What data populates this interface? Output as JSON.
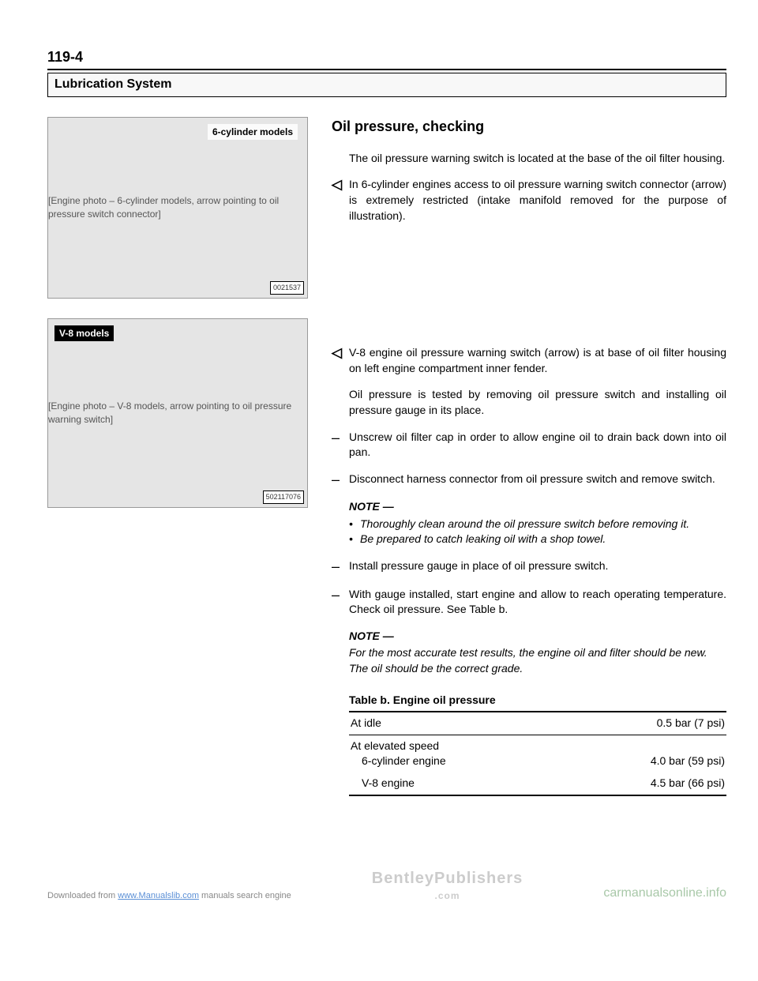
{
  "page_number": "119-4",
  "section_header": "Lubrication System",
  "image1": {
    "label": "6-cylinder models",
    "id": "0021537",
    "alt": "[Engine photo – 6-cylinder models, arrow pointing to oil pressure switch connector]"
  },
  "image2": {
    "label": "V-8 models",
    "id": "502117076",
    "alt": "[Engine photo – V-8 models, arrow pointing to oil pressure warning switch]"
  },
  "heading": "Oil pressure, checking",
  "p1": "The oil pressure warning switch is located at the base of the oil filter housing.",
  "p2": "In 6-cylinder engines access to oil pressure warning switch connector (arrow) is extremely restricted (intake manifold removed for the purpose of illustration).",
  "p3": "V-8 engine oil pressure warning switch (arrow) is at base of oil filter housing on left engine compartment inner fender.",
  "p4": "Oil pressure is tested by removing oil pressure switch and installing oil pressure gauge in its place.",
  "p5": "Unscrew oil filter cap in order to allow engine oil to drain back down into oil pan.",
  "p6": "Disconnect harness connector from oil pressure switch and remove switch.",
  "note1": {
    "title": "NOTE —",
    "bullets": [
      "Thoroughly clean around the oil pressure switch before removing it.",
      "Be prepared to catch leaking oil with a shop towel."
    ]
  },
  "p7": "Install pressure gauge in place of oil pressure switch.",
  "p8": "With gauge installed, start engine and allow to reach operating temperature. Check oil pressure. See Table b.",
  "note2": {
    "title": "NOTE —",
    "text": "For the most accurate test results, the engine oil and filter should be new. The oil should be the correct grade."
  },
  "table": {
    "title": "Table b. Engine oil pressure",
    "rows": [
      {
        "label": "At idle",
        "value": "0.5 bar (7 psi)"
      },
      {
        "label_main": "At elevated speed",
        "sub": [
          {
            "label": "6-cylinder engine",
            "value": "4.0 bar (59 psi)"
          },
          {
            "label": "V-8 engine",
            "value": "4.5 bar (66 psi)"
          }
        ]
      }
    ]
  },
  "footer": {
    "left_prefix": "Downloaded from ",
    "left_link": "www.Manualslib.com",
    "left_suffix": " manuals search engine",
    "center": "BentleyPublishers",
    "center_sub": ".com",
    "right": "carmanualsonline.info"
  }
}
